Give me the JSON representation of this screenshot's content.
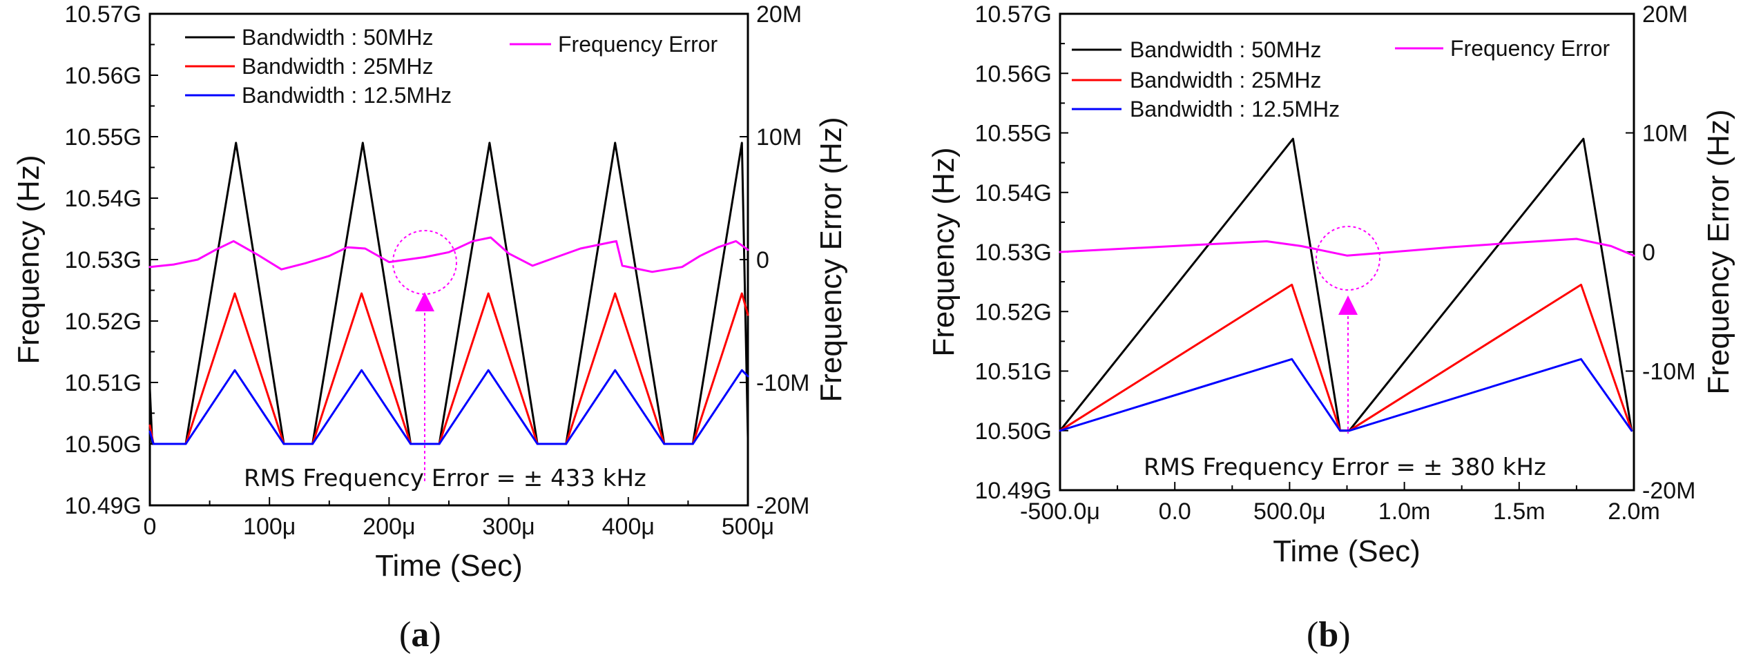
{
  "chart_data": [
    {
      "type": "line",
      "panel_label": "(a)",
      "panel_letter": "a",
      "xlabel": "Time (Sec)",
      "ylabel_left": "Frequency (Hz)",
      "ylabel_right": "Frequency Error (Hz)",
      "xlim_us": [
        0,
        500
      ],
      "ylim_left_GHz": [
        10.49,
        10.57
      ],
      "ylim_right_MHz": [
        -20,
        20
      ],
      "x_ticks": [
        "0",
        "100μ",
        "200μ",
        "300μ",
        "400μ",
        "500μ"
      ],
      "y_ticks_left": [
        "10.57G",
        "10.56G",
        "10.55G",
        "10.54G",
        "10.53G",
        "10.52G",
        "10.51G",
        "10.50G",
        "10.49G"
      ],
      "y_ticks_right": [
        "20M",
        "10M",
        "0",
        "-10M",
        "-20M"
      ],
      "legend": [
        {
          "name": "Bandwidth : 50MHz",
          "color": "#000000"
        },
        {
          "name": "Bandwidth : 25MHz",
          "color": "#ff0000"
        },
        {
          "name": "Bandwidth : 12.5MHz",
          "color": "#0000ff"
        },
        {
          "name": "Frequency Error",
          "color": "#ff00ff"
        }
      ],
      "annotation": "RMS Frequency Error = ± 433 kHz",
      "series": [
        {
          "name": "Bandwidth : 50MHz",
          "color": "#000000",
          "axis": "left",
          "x_us": [
            0,
            2,
            30,
            72,
            112,
            136,
            178,
            218,
            242,
            284,
            324,
            348,
            389,
            430,
            454,
            495,
            500
          ],
          "values_GHz": [
            10.509,
            10.5,
            10.5,
            10.549,
            10.5,
            10.5,
            10.549,
            10.5,
            10.5,
            10.549,
            10.5,
            10.5,
            10.549,
            10.5,
            10.5,
            10.549,
            10.501
          ]
        },
        {
          "name": "Bandwidth : 25MHz",
          "color": "#ff0000",
          "axis": "left",
          "x_us": [
            0,
            3,
            30,
            71,
            112,
            136,
            177,
            218,
            242,
            283,
            324,
            348,
            389,
            430,
            454,
            495,
            500
          ],
          "values_GHz": [
            10.503,
            10.5,
            10.5,
            10.5245,
            10.5,
            10.5,
            10.5245,
            10.5,
            10.5,
            10.5245,
            10.5,
            10.5,
            10.5245,
            10.5,
            10.5,
            10.5245,
            10.521
          ]
        },
        {
          "name": "Bandwidth : 12.5MHz",
          "color": "#0000ff",
          "axis": "left",
          "x_us": [
            0,
            3,
            30,
            71,
            112,
            136,
            177,
            218,
            242,
            283,
            324,
            348,
            389,
            430,
            454,
            495,
            500
          ],
          "values_GHz": [
            10.502,
            10.5,
            10.5,
            10.512,
            10.5,
            10.5,
            10.512,
            10.5,
            10.5,
            10.512,
            10.5,
            10.5,
            10.512,
            10.5,
            10.5,
            10.512,
            10.511
          ]
        },
        {
          "name": "Frequency Error",
          "color": "#ff00ff",
          "axis": "right",
          "x_us": [
            0,
            20,
            40,
            55,
            70,
            90,
            110,
            130,
            150,
            165,
            180,
            200,
            230,
            250,
            270,
            285,
            300,
            320,
            340,
            360,
            375,
            390,
            395,
            420,
            445,
            460,
            475,
            490,
            500
          ],
          "values_MHz": [
            -0.6,
            -0.4,
            0.0,
            0.8,
            1.5,
            0.4,
            -0.8,
            -0.3,
            0.3,
            1.0,
            0.9,
            -0.2,
            0.2,
            0.6,
            1.5,
            1.8,
            0.5,
            -0.5,
            0.2,
            0.9,
            1.2,
            1.5,
            -0.5,
            -1.0,
            -0.6,
            0.3,
            1.0,
            1.5,
            0.8
          ]
        }
      ],
      "rms_marker": {
        "x_us": 230,
        "error_MHz": 0
      }
    },
    {
      "type": "line",
      "panel_label": "(b)",
      "panel_letter": "b",
      "xlabel": "Time (Sec)",
      "ylabel_left": "Frequency (Hz)",
      "ylabel_right": "Frequency Error (Hz)",
      "xlim_ms": [
        -0.5,
        2.0
      ],
      "ylim_left_GHz": [
        10.49,
        10.57
      ],
      "ylim_right_MHz": [
        -20,
        20
      ],
      "x_ticks": [
        "-500.0μ",
        "0.0",
        "500.0μ",
        "1.0m",
        "1.5m",
        "2.0m"
      ],
      "y_ticks_left": [
        "10.57G",
        "10.56G",
        "10.55G",
        "10.54G",
        "10.53G",
        "10.52G",
        "10.51G",
        "10.50G",
        "10.49G"
      ],
      "y_ticks_right": [
        "20M",
        "10M",
        "0",
        "-10M",
        "-20M"
      ],
      "legend": [
        {
          "name": "Bandwidth : 50MHz",
          "color": "#000000"
        },
        {
          "name": "Bandwidth : 25MHz",
          "color": "#ff0000"
        },
        {
          "name": "Bandwidth : 12.5MHz",
          "color": "#0000ff"
        },
        {
          "name": "Frequency Error",
          "color": "#ff00ff"
        }
      ],
      "annotation": "RMS Frequency Error = ± 380 kHz",
      "series": [
        {
          "name": "Bandwidth : 50MHz",
          "color": "#000000",
          "axis": "left",
          "x_ms": [
            -0.5,
            0.515,
            0.72,
            0.76,
            1.78,
            1.99
          ],
          "values_GHz": [
            10.5,
            10.549,
            10.5,
            10.5,
            10.549,
            10.5
          ]
        },
        {
          "name": "Bandwidth : 25MHz",
          "color": "#ff0000",
          "axis": "left",
          "x_ms": [
            -0.5,
            0.51,
            0.72,
            0.76,
            1.77,
            1.99
          ],
          "values_GHz": [
            10.5,
            10.5245,
            10.5,
            10.5,
            10.5245,
            10.5
          ]
        },
        {
          "name": "Bandwidth : 12.5MHz",
          "color": "#0000ff",
          "axis": "left",
          "x_ms": [
            -0.5,
            0.51,
            0.72,
            0.76,
            1.77,
            1.99
          ],
          "values_GHz": [
            10.5,
            10.512,
            10.5,
            10.5,
            10.512,
            10.5
          ]
        },
        {
          "name": "Frequency Error",
          "color": "#ff00ff",
          "axis": "right",
          "x_ms": [
            -0.5,
            -0.2,
            0.1,
            0.4,
            0.55,
            0.75,
            0.95,
            1.2,
            1.5,
            1.75,
            1.9,
            2.0
          ],
          "values_MHz": [
            0.0,
            0.3,
            0.6,
            0.9,
            0.5,
            -0.3,
            0.0,
            0.4,
            0.8,
            1.1,
            0.5,
            -0.3
          ]
        }
      ],
      "rms_marker": {
        "x_ms": 0.76,
        "error_MHz": 0
      }
    }
  ]
}
